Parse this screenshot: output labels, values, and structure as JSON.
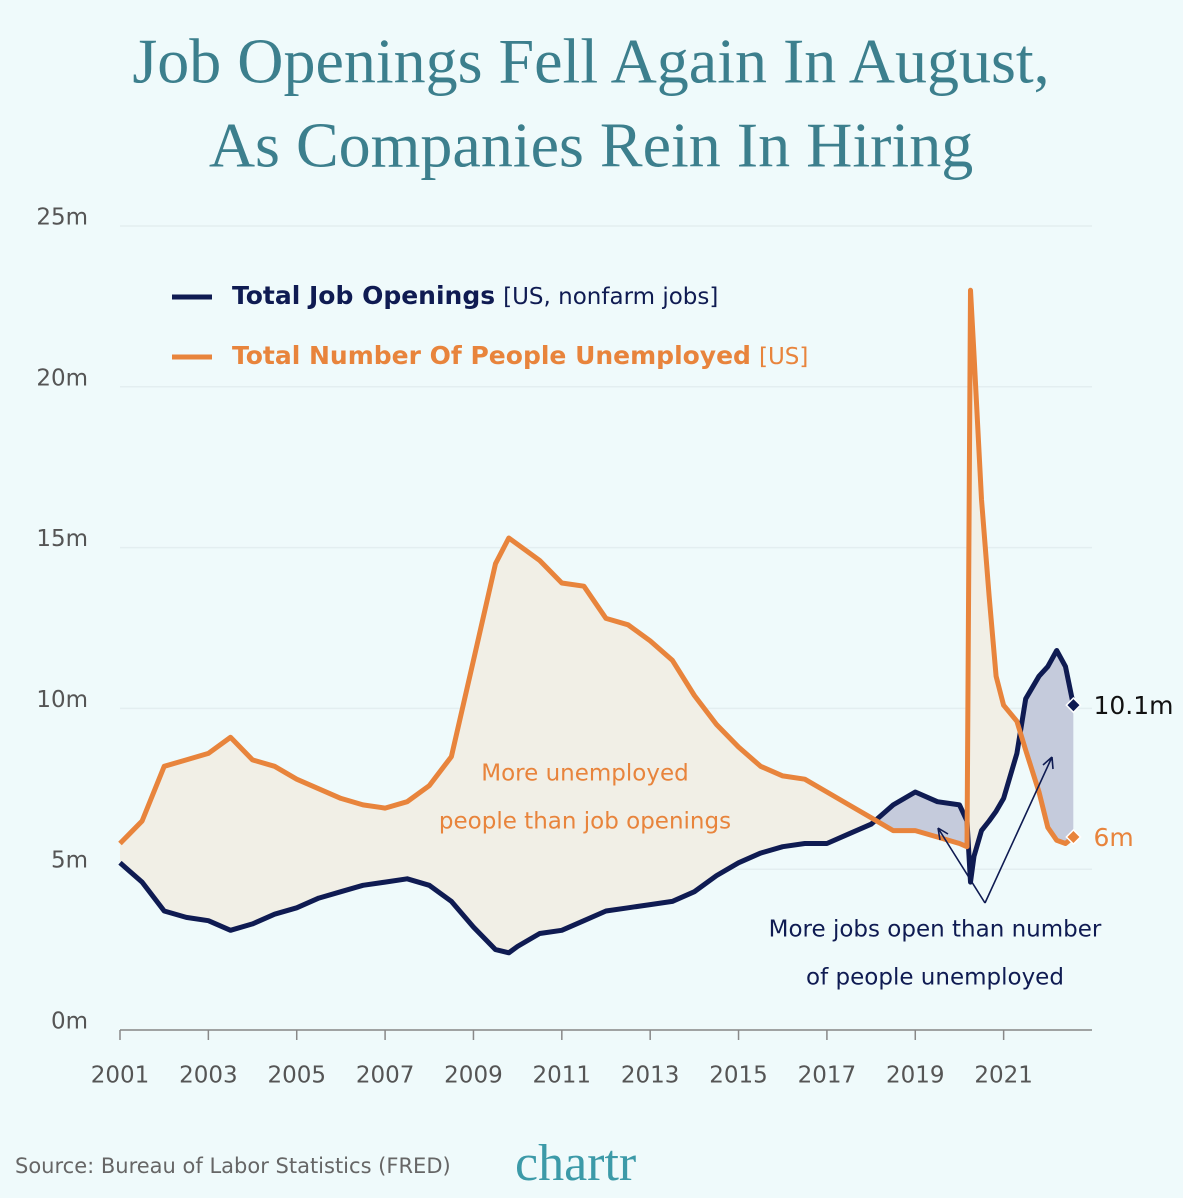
{
  "chart_data": {
    "type": "line",
    "title": [
      "Job Openings Fell Again In August,",
      "As Companies Rein In Hiring"
    ],
    "x": [
      2001,
      2001.5,
      2002,
      2002.5,
      2003,
      2003.5,
      2004,
      2004.5,
      2005,
      2005.5,
      2006,
      2006.5,
      2007,
      2007.5,
      2008,
      2008.5,
      2009,
      2009.5,
      2009.8,
      2010,
      2010.5,
      2011,
      2011.5,
      2012,
      2012.5,
      2013,
      2013.5,
      2014,
      2014.5,
      2015,
      2015.5,
      2016,
      2016.5,
      2017,
      2017.5,
      2018,
      2018.5,
      2019,
      2019.5,
      2020,
      2020.17,
      2020.25,
      2020.33,
      2020.5,
      2020.67,
      2020.83,
      2021,
      2021.3,
      2021.5,
      2021.8,
      2022,
      2022.2,
      2022.4,
      2022.58
    ],
    "series": [
      {
        "name": "Total Job Openings",
        "unit_note": "[US, nonfarm jobs]",
        "color": "#0f1b52",
        "values": [
          5.2,
          4.6,
          3.7,
          3.5,
          3.4,
          3.1,
          3.3,
          3.6,
          3.8,
          4.1,
          4.3,
          4.5,
          4.6,
          4.7,
          4.5,
          4.0,
          3.2,
          2.5,
          2.4,
          2.6,
          3.0,
          3.1,
          3.4,
          3.7,
          3.8,
          3.9,
          4.0,
          4.3,
          4.8,
          5.2,
          5.5,
          5.7,
          5.8,
          5.8,
          6.1,
          6.4,
          7.0,
          7.4,
          7.1,
          7.0,
          6.5,
          4.6,
          5.4,
          6.2,
          6.5,
          6.8,
          7.2,
          8.6,
          10.3,
          11.0,
          11.3,
          11.8,
          11.3,
          10.1
        ],
        "value_labels": [
          null,
          null,
          null,
          null,
          null,
          null,
          null,
          null,
          null,
          null,
          null,
          null,
          null,
          null,
          null,
          null,
          null,
          null,
          null,
          null,
          null,
          null,
          null,
          null,
          null,
          null,
          null,
          null,
          null,
          null,
          null,
          null,
          null,
          null,
          null,
          null,
          null,
          null,
          null,
          null,
          null,
          null,
          null,
          null,
          null,
          null,
          null,
          null,
          null,
          null,
          null,
          null,
          null,
          "10.1m"
        ]
      },
      {
        "name": "Total Number Of People Unemployed",
        "unit_note": "[US]",
        "color": "#e8843c",
        "values": [
          5.8,
          6.5,
          8.2,
          8.4,
          8.6,
          9.1,
          8.4,
          8.2,
          7.8,
          7.5,
          7.2,
          7.0,
          6.9,
          7.1,
          7.6,
          8.5,
          11.5,
          14.5,
          15.3,
          15.1,
          14.6,
          13.9,
          13.8,
          12.8,
          12.6,
          12.1,
          11.5,
          10.4,
          9.5,
          8.8,
          8.2,
          7.9,
          7.8,
          7.4,
          7.0,
          6.6,
          6.2,
          6.2,
          6.0,
          5.8,
          5.7,
          23.0,
          21.0,
          16.5,
          13.5,
          11.0,
          10.1,
          9.6,
          8.7,
          7.4,
          6.3,
          5.9,
          5.8,
          6.0
        ],
        "value_labels": [
          null,
          null,
          null,
          null,
          null,
          null,
          null,
          null,
          null,
          null,
          null,
          null,
          null,
          null,
          null,
          null,
          null,
          null,
          null,
          null,
          null,
          null,
          null,
          null,
          null,
          null,
          null,
          null,
          null,
          null,
          null,
          null,
          null,
          null,
          null,
          null,
          null,
          null,
          null,
          null,
          null,
          null,
          null,
          null,
          null,
          null,
          null,
          null,
          null,
          null,
          null,
          null,
          null,
          "6m"
        ]
      }
    ],
    "xlim": [
      2001,
      2023
    ],
    "xticks": [
      2001,
      2003,
      2005,
      2007,
      2009,
      2011,
      2013,
      2015,
      2017,
      2019,
      2021
    ],
    "ylim": [
      0,
      25
    ],
    "yticks": [
      {
        "value": 0,
        "label": "0m"
      },
      {
        "value": 5,
        "label": "5m"
      },
      {
        "value": 10,
        "label": "10m"
      },
      {
        "value": 15,
        "label": "15m"
      },
      {
        "value": 20,
        "label": "20m"
      },
      {
        "value": 25,
        "label": "25m"
      }
    ],
    "grid": true,
    "fill_colors": {
      "below": "#f1efe6",
      "above": "#c5cbdc"
    },
    "annotations": [
      [
        "More unemployed",
        "people than job openings"
      ],
      [
        "More jobs open than number",
        "of people unemployed"
      ]
    ],
    "source": "Source: Bureau of Labor Statistics (FRED)",
    "logo": "chartr"
  }
}
